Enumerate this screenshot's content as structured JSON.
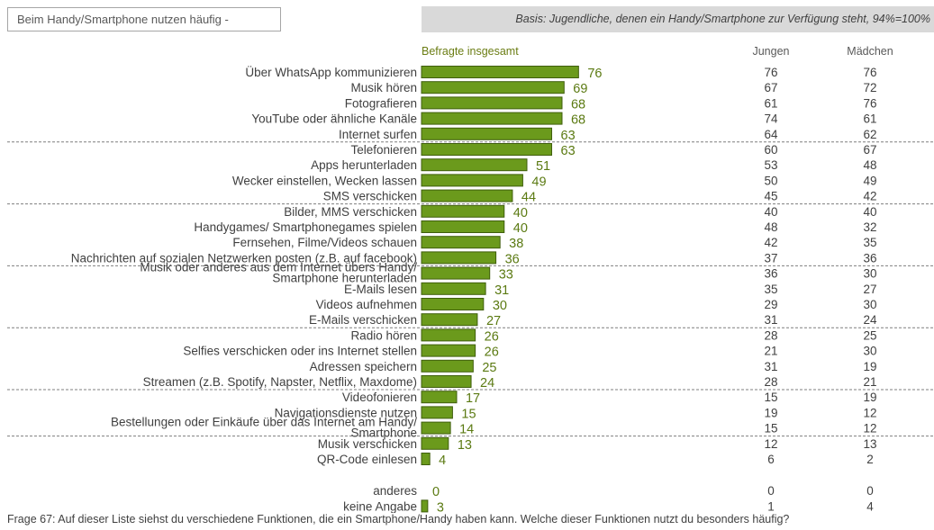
{
  "header": {
    "title": "Beim Handy/Smartphone nutzen häufig  -",
    "basis": "Basis: Jugendliche, denen ein Handy/Smartphone zur Verfügung steht, 94%=100%"
  },
  "footnote": "Frage 67: Auf dieser Liste siehst du verschiedene Funktionen, die ein Smartphone/Handy haben kann. Welche dieser Funktionen nutzt du besonders häufig?",
  "colors": {
    "bar_fill": "#6b9a1c",
    "bar_stroke": "#3f5e0c",
    "value_text": "#5b7a12",
    "series_label": "#6b7d14",
    "dashed_line": "#7f7f7f"
  },
  "chart_data": {
    "type": "bar",
    "orientation": "horizontal",
    "series_label": "Befragte insgesamt",
    "column_headers": [
      "Jungen",
      "Mädchen"
    ],
    "categories": [
      "Über WhatsApp kommunizieren",
      "Musik hören",
      "Fotografieren",
      "YouTube oder ähnliche Kanäle",
      "Internet surfen",
      "Telefonieren",
      "Apps herunterladen",
      "Wecker einstellen, Wecken lassen",
      "SMS verschicken",
      "Bilder, MMS verschicken",
      "Handygames/ Smartphonegames spielen",
      "Fernsehen, Filme/Videos schauen",
      "Nachrichten auf sozialen Netzwerken posten (z.B. auf facebook)",
      "Musik oder anderes aus dem Internet übers Handy/ Smartphone herunterladen",
      "E-Mails lesen",
      "Videos aufnehmen",
      "E-Mails verschicken",
      "Radio hören",
      "Selfies verschicken oder ins Internet stellen",
      "Adressen speichern",
      "Streamen (z.B. Spotify, Napster, Netflix, Maxdome)",
      "Videofonieren",
      "Navigationsdienste nutzen",
      "Bestellungen oder Einkäufe über das Internet am Handy/ Smartphone",
      "Musik verschicken",
      "QR-Code einlesen",
      "anderes",
      "keine Angabe"
    ],
    "total": [
      76,
      69,
      68,
      68,
      63,
      63,
      51,
      49,
      44,
      40,
      40,
      38,
      36,
      33,
      31,
      30,
      27,
      26,
      26,
      25,
      24,
      17,
      15,
      14,
      13,
      4,
      0,
      3
    ],
    "jungen": [
      76,
      67,
      61,
      74,
      64,
      60,
      53,
      50,
      45,
      40,
      48,
      42,
      37,
      36,
      35,
      29,
      31,
      28,
      21,
      31,
      28,
      15,
      19,
      15,
      12,
      6,
      0,
      1
    ],
    "maedchen": [
      76,
      72,
      76,
      61,
      62,
      67,
      48,
      49,
      42,
      40,
      32,
      35,
      36,
      30,
      27,
      30,
      24,
      25,
      30,
      19,
      21,
      19,
      12,
      12,
      13,
      2,
      0,
      4
    ],
    "separators_after_rows": [
      4,
      8,
      12,
      16,
      20,
      23
    ]
  }
}
